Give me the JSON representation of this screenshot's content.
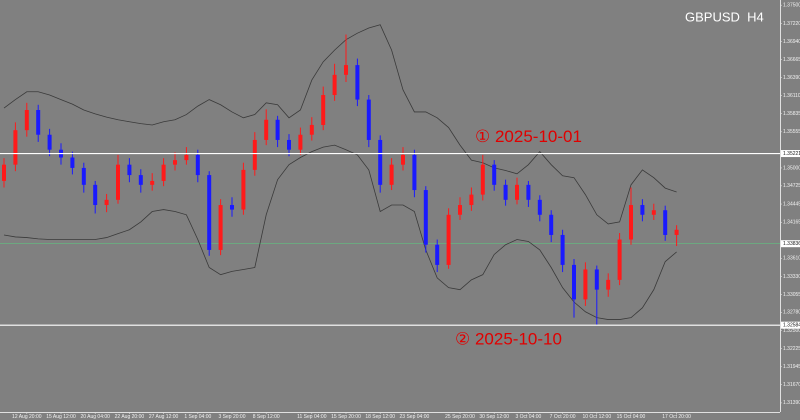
{
  "chart_data": {
    "type": "candlestick",
    "title": "GBPUSD  H4",
    "up_color": "#ff1a1a",
    "down_color": "#1a1aff",
    "band_color": "#3a3a3a",
    "background": "#808080",
    "categories": [
      null,
      null,
      "12 Aug 20:00",
      null,
      null,
      "15 Aug 12:00",
      null,
      null,
      "20 Aug 04:00",
      null,
      null,
      "22 Aug 20:00",
      null,
      null,
      "27 Aug 12:00",
      null,
      null,
      "1 Sep 04:00",
      null,
      null,
      "3 Sep 20:00",
      null,
      null,
      "8 Sep 12:00",
      null,
      null,
      null,
      "11 Sep 04:00",
      null,
      null,
      "15 Sep 20:00",
      null,
      null,
      "18 Sep 12:00",
      null,
      null,
      "23 Sep 04:00",
      null,
      null,
      null,
      "25 Sep 20:00",
      null,
      null,
      "30 Sep 12:00",
      null,
      null,
      "3 Oct 04:00",
      null,
      null,
      "7 Oct 20:00",
      null,
      null,
      "10 Oct 12:00",
      null,
      null,
      "15 Oct 04:00",
      null,
      null,
      null,
      "17 Oct 20:00"
    ],
    "open": [
      1.348,
      1.3505,
      1.3558,
      1.3589,
      1.3551,
      1.3528,
      1.3516,
      1.35,
      1.3474,
      1.3443,
      1.3451,
      1.3505,
      1.3489,
      1.3474,
      1.348,
      1.3505,
      1.3512,
      1.352,
      1.3489,
      1.3374,
      1.3443,
      1.3436,
      1.3497,
      1.3543,
      1.3574,
      1.3543,
      1.3528,
      1.3551,
      1.3566,
      1.3612,
      1.3643,
      1.3658,
      1.3605,
      1.3543,
      1.3474,
      1.3505,
      1.352,
      1.3466,
      1.3382,
      1.3351,
      1.3428,
      1.3443,
      1.3459,
      1.3505,
      1.3474,
      1.3451,
      1.3474,
      1.3451,
      1.3428,
      1.3397,
      1.3351,
      1.3298,
      1.3344,
      1.3313,
      1.3328,
      1.339,
      1.3443,
      1.3428,
      1.3435,
      1.3397
    ],
    "high": [
      1.3515,
      1.357,
      1.36,
      1.3597,
      1.356,
      1.3538,
      1.3525,
      1.3508,
      1.348,
      1.346,
      1.352,
      1.3515,
      1.3498,
      1.3492,
      1.3515,
      1.3524,
      1.3532,
      1.3528,
      1.3495,
      1.3452,
      1.3455,
      1.3508,
      1.3555,
      1.359,
      1.358,
      1.3552,
      1.3562,
      1.3578,
      1.3625,
      1.366,
      1.3705,
      1.3668,
      1.3612,
      1.355,
      1.3515,
      1.3532,
      1.3528,
      1.3472,
      1.339,
      1.3438,
      1.3455,
      1.347,
      1.352,
      1.3512,
      1.3482,
      1.3485,
      1.348,
      1.3458,
      1.3435,
      1.3405,
      1.336,
      1.3355,
      1.335,
      1.3338,
      1.34,
      1.347,
      1.3452,
      1.3445,
      1.3442,
      1.3412
    ],
    "low": [
      1.347,
      1.3495,
      1.3548,
      1.354,
      1.3518,
      1.3505,
      1.349,
      1.3462,
      1.343,
      1.3432,
      1.3445,
      1.3478,
      1.3462,
      1.3465,
      1.3472,
      1.3496,
      1.3505,
      1.3478,
      1.3365,
      1.3366,
      1.3425,
      1.3428,
      1.3488,
      1.3535,
      1.3532,
      1.3518,
      1.352,
      1.3542,
      1.3558,
      1.3603,
      1.3632,
      1.3595,
      1.3532,
      1.3462,
      1.3466,
      1.3496,
      1.3455,
      1.337,
      1.334,
      1.3345,
      1.342,
      1.3434,
      1.345,
      1.3465,
      1.3442,
      1.3444,
      1.344,
      1.3418,
      1.3386,
      1.334,
      1.327,
      1.3288,
      1.3258,
      1.3302,
      1.332,
      1.3382,
      1.3418,
      1.342,
      1.3388,
      1.338
    ],
    "close": [
      1.3505,
      1.3558,
      1.3589,
      1.3551,
      1.3528,
      1.3516,
      1.35,
      1.3474,
      1.3443,
      1.3451,
      1.3505,
      1.3489,
      1.3474,
      1.348,
      1.3505,
      1.3512,
      1.352,
      1.3489,
      1.3374,
      1.3443,
      1.3436,
      1.3497,
      1.3543,
      1.3574,
      1.3543,
      1.3528,
      1.3551,
      1.3566,
      1.3612,
      1.3643,
      1.3658,
      1.3605,
      1.3543,
      1.3474,
      1.3505,
      1.352,
      1.3466,
      1.3382,
      1.3351,
      1.3428,
      1.3443,
      1.3459,
      1.3505,
      1.3474,
      1.3451,
      1.3474,
      1.3451,
      1.3428,
      1.3397,
      1.3351,
      1.3298,
      1.3344,
      1.3313,
      1.3328,
      1.339,
      1.3443,
      1.3428,
      1.3435,
      1.3397,
      1.3405
    ],
    "bands": [
      {
        "values": [
          1.3592,
          1.3605,
          1.3617,
          1.3617,
          1.3612,
          1.3605,
          1.3598,
          1.3589,
          1.3583,
          1.3578,
          1.3574,
          1.3571,
          1.3568,
          1.3566,
          1.3571,
          1.3574,
          1.3582,
          1.3595,
          1.3605,
          1.3597,
          1.3586,
          1.3577,
          1.3582,
          1.36,
          1.3597,
          1.3577,
          1.3589,
          1.3635,
          1.3663,
          1.3681,
          1.3697,
          1.3707,
          1.3715,
          1.372,
          1.3681,
          1.362,
          1.3586,
          1.3586,
          1.3577,
          1.3562,
          1.3535,
          1.3512,
          1.3508,
          1.35,
          1.3496,
          1.3491,
          1.3505,
          1.3525,
          1.3505,
          1.3488,
          1.3485,
          1.3459,
          1.3428,
          1.3414,
          1.3417,
          1.3474,
          1.3497,
          1.3485,
          1.3469,
          1.3463
        ]
      },
      {
        "values": [
          1.3397,
          1.3394,
          1.3393,
          1.3391,
          1.339,
          1.339,
          1.339,
          1.339,
          1.339,
          1.3393,
          1.3399,
          1.3405,
          1.3417,
          1.3433,
          1.3436,
          1.3433,
          1.3428,
          1.339,
          1.3347,
          1.3336,
          1.3341,
          1.3344,
          1.3347,
          1.3428,
          1.3482,
          1.3505,
          1.3516,
          1.3525,
          1.3532,
          1.3535,
          1.3528,
          1.352,
          1.3497,
          1.3433,
          1.3443,
          1.3443,
          1.3433,
          1.3374,
          1.3331,
          1.3316,
          1.3313,
          1.3328,
          1.3336,
          1.3367,
          1.3382,
          1.339,
          1.3387,
          1.3374,
          1.3347,
          1.3316,
          1.3294,
          1.3279,
          1.327,
          1.3267,
          1.3267,
          1.327,
          1.3285,
          1.3313,
          1.3356,
          1.3371
        ]
      }
    ],
    "ylim": [
      1.3125,
      1.3758
    ],
    "yticks": [
      {
        "value": 1.375,
        "label": "1.37500"
      },
      {
        "value": 1.3722,
        "label": "1.37220"
      },
      {
        "value": 1.3694,
        "label": "1.36940"
      },
      {
        "value": 1.36665,
        "label": "1.36665"
      },
      {
        "value": 1.3639,
        "label": "1.36390"
      },
      {
        "value": 1.3611,
        "label": "1.36110"
      },
      {
        "value": 1.35835,
        "label": "1.35835"
      },
      {
        "value": 1.35555,
        "label": "1.35555"
      },
      {
        "value": 1.35,
        "label": "1.35000"
      },
      {
        "value": 1.34725,
        "label": "1.34725"
      },
      {
        "value": 1.34445,
        "label": "1.34445"
      },
      {
        "value": 1.34165,
        "label": "1.34165"
      },
      {
        "value": 1.3361,
        "label": "1.33610"
      },
      {
        "value": 1.3333,
        "label": "1.33330"
      },
      {
        "value": 1.33055,
        "label": "1.33055"
      },
      {
        "value": 1.3278,
        "label": "1.32780"
      },
      {
        "value": 1.325,
        "label": "1.32500"
      },
      {
        "value": 1.32225,
        "label": "1.32225"
      },
      {
        "value": 1.31945,
        "label": "1.31945"
      },
      {
        "value": 1.3167,
        "label": "1.31670"
      },
      {
        "value": 1.3139,
        "label": "1.31390"
      }
    ],
    "levels": [
      {
        "value": 1.35221,
        "label": "1.35221",
        "note": "① 2025-10-01"
      },
      {
        "value": 1.32584,
        "label": "1.32584",
        "note": "② 2025-10-10"
      }
    ],
    "bid": {
      "value": 1.33836,
      "label": "1.33836",
      "color": "#5fbf7f"
    }
  }
}
